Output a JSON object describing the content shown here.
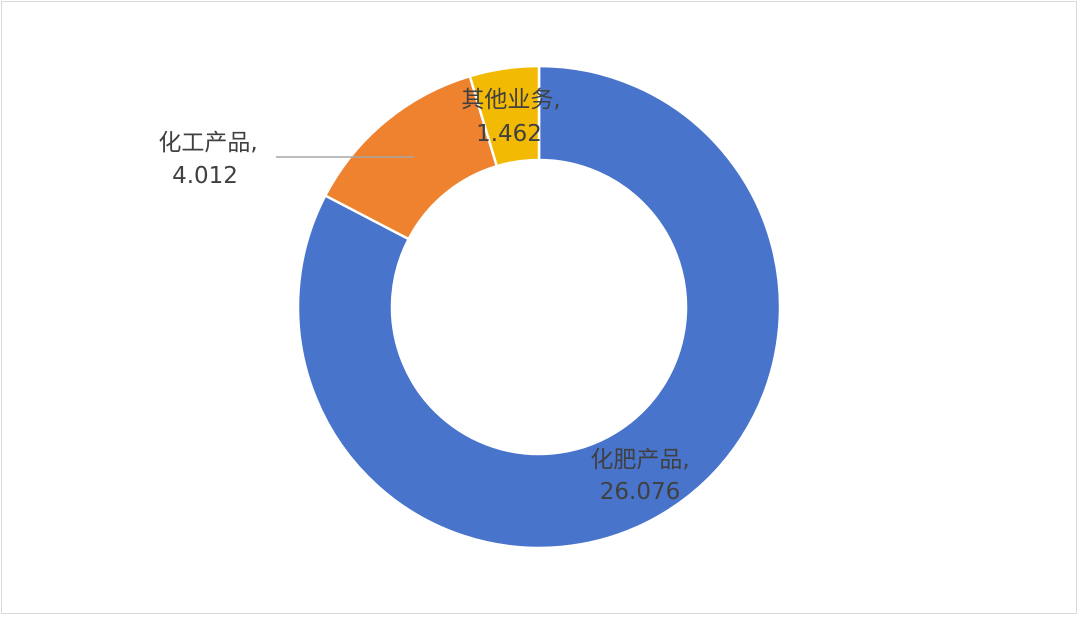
{
  "chart_data": {
    "type": "pie",
    "variant": "donut",
    "categories": [
      "化肥产品",
      "化工产品",
      "其他业务"
    ],
    "values": [
      26.076,
      4.012,
      1.462
    ],
    "colors": [
      "#4874CB",
      "#EE822F",
      "#F2BA02"
    ],
    "data_labels": [
      {
        "category": "化肥产品,",
        "value": "26.076"
      },
      {
        "category": "化工产品,",
        "value": "4.012"
      },
      {
        "category": "其他业务,",
        "value": "1.462"
      }
    ],
    "title": "",
    "legend": "none"
  }
}
